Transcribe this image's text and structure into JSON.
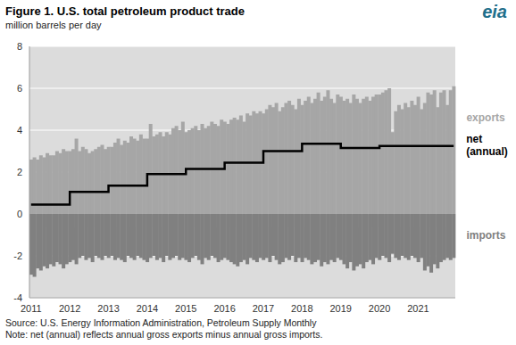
{
  "chart_data": {
    "type": "bar",
    "title": "Figure 1. U.S. total petroleum product trade",
    "subtitle": "million barrels per day",
    "source": "Source: U.S. Energy Information Administration, Petroleum Supply Monthly",
    "note": "Note: net (annual) reflects annual gross exports minus annual gross imports.",
    "logo": "eia",
    "categories": [
      "2011",
      null,
      null,
      null,
      null,
      null,
      null,
      null,
      null,
      null,
      null,
      null,
      "2012",
      null,
      null,
      null,
      null,
      null,
      null,
      null,
      null,
      null,
      null,
      null,
      "2013",
      null,
      null,
      null,
      null,
      null,
      null,
      null,
      null,
      null,
      null,
      null,
      "2014",
      null,
      null,
      null,
      null,
      null,
      null,
      null,
      null,
      null,
      null,
      null,
      "2015",
      null,
      null,
      null,
      null,
      null,
      null,
      null,
      null,
      null,
      null,
      null,
      "2016",
      null,
      null,
      null,
      null,
      null,
      null,
      null,
      null,
      null,
      null,
      null,
      "2017",
      null,
      null,
      null,
      null,
      null,
      null,
      null,
      null,
      null,
      null,
      null,
      "2018",
      null,
      null,
      null,
      null,
      null,
      null,
      null,
      null,
      null,
      null,
      null,
      "2019",
      null,
      null,
      null,
      null,
      null,
      null,
      null,
      null,
      null,
      null,
      null,
      "2020",
      null,
      null,
      null,
      null,
      null,
      null,
      null,
      null,
      null,
      null,
      null,
      "2021",
      null,
      null,
      null,
      null,
      null,
      null,
      null,
      null,
      null,
      null,
      null
    ],
    "series": [
      {
        "name": "exports",
        "type": "bar",
        "color": "#a6a6a6",
        "values": [
          2.6,
          2.7,
          2.6,
          2.8,
          2.7,
          2.9,
          2.8,
          2.8,
          3.0,
          2.9,
          3.1,
          3.0,
          3.0,
          3.1,
          3.6,
          3.0,
          3.2,
          3.1,
          2.9,
          3.0,
          3.1,
          3.2,
          3.3,
          3.1,
          3.2,
          3.2,
          3.4,
          3.6,
          3.3,
          3.5,
          3.4,
          3.7,
          3.6,
          3.5,
          3.8,
          3.6,
          3.6,
          4.3,
          3.7,
          3.8,
          3.9,
          3.7,
          3.9,
          3.8,
          4.1,
          4.2,
          4.0,
          4.4,
          3.9,
          4.0,
          4.1,
          4.2,
          4.0,
          4.3,
          4.1,
          4.2,
          4.4,
          4.3,
          4.2,
          4.5,
          4.4,
          4.3,
          4.5,
          4.6,
          4.5,
          4.7,
          4.4,
          4.8,
          4.7,
          4.9,
          4.8,
          4.9,
          4.8,
          5.0,
          5.2,
          5.1,
          5.3,
          4.9,
          5.1,
          5.3,
          5.4,
          5.2,
          5.0,
          5.5,
          5.2,
          5.4,
          5.6,
          5.3,
          5.5,
          5.8,
          5.4,
          5.6,
          5.9,
          5.5,
          5.3,
          5.7,
          5.6,
          5.4,
          5.5,
          5.3,
          5.7,
          5.5,
          5.3,
          5.5,
          5.6,
          5.4,
          5.6,
          5.7,
          5.7,
          5.8,
          5.9,
          6.0,
          3.9,
          4.9,
          5.2,
          5.0,
          5.3,
          5.1,
          5.4,
          5.2,
          5.6,
          5.0,
          5.3,
          5.8,
          5.7,
          5.9,
          5.1,
          5.8,
          5.9,
          5.2,
          5.9,
          6.1
        ]
      },
      {
        "name": "imports",
        "type": "bar",
        "color": "#808080",
        "values": [
          -2.9,
          -3.0,
          -2.6,
          -2.7,
          -2.5,
          -2.6,
          -2.4,
          -2.5,
          -2.3,
          -2.4,
          -2.6,
          -2.4,
          -2.3,
          -2.2,
          -2.4,
          -2.1,
          -2.0,
          -2.2,
          -2.1,
          -2.3,
          -2.0,
          -2.1,
          -2.2,
          -2.0,
          -2.1,
          -2.0,
          -2.2,
          -2.1,
          -2.2,
          -2.3,
          -2.0,
          -2.1,
          -2.2,
          -2.0,
          -2.1,
          -2.2,
          -2.3,
          -2.1,
          -2.0,
          -2.2,
          -2.1,
          -2.3,
          -2.0,
          -2.2,
          -2.1,
          -2.0,
          -2.2,
          -2.1,
          -2.2,
          -2.3,
          -2.1,
          -2.0,
          -2.2,
          -2.4,
          -2.1,
          -2.2,
          -2.0,
          -2.1,
          -2.3,
          -2.2,
          -2.1,
          -2.2,
          -2.3,
          -2.4,
          -2.5,
          -2.3,
          -2.2,
          -2.4,
          -2.1,
          -2.2,
          -2.3,
          -2.1,
          -2.2,
          -2.1,
          -2.3,
          -2.0,
          -2.2,
          -2.4,
          -2.3,
          -2.1,
          -2.2,
          -2.0,
          -2.3,
          -2.1,
          -2.3,
          -2.1,
          -2.2,
          -2.4,
          -2.3,
          -2.2,
          -2.5,
          -2.3,
          -2.4,
          -2.2,
          -2.3,
          -2.1,
          -2.2,
          -2.4,
          -2.6,
          -2.3,
          -2.7,
          -2.5,
          -2.4,
          -2.6,
          -2.3,
          -2.2,
          -2.4,
          -2.1,
          -2.2,
          -2.0,
          -2.1,
          -2.3,
          -1.9,
          -2.1,
          -2.2,
          -2.0,
          -2.1,
          -2.2,
          -2.0,
          -2.1,
          -2.3,
          -2.1,
          -2.7,
          -2.5,
          -2.8,
          -2.4,
          -2.6,
          -2.3,
          -2.2,
          -2.1,
          -2.2,
          -2.1
        ]
      },
      {
        "name": "net (annual)",
        "type": "line",
        "line_style": "step",
        "color": "#000000",
        "values": [
          0.45,
          0.45,
          0.45,
          0.45,
          0.45,
          0.45,
          0.45,
          0.45,
          0.45,
          0.45,
          0.45,
          0.45,
          1.05,
          1.05,
          1.05,
          1.05,
          1.05,
          1.05,
          1.05,
          1.05,
          1.05,
          1.05,
          1.05,
          1.05,
          1.35,
          1.35,
          1.35,
          1.35,
          1.35,
          1.35,
          1.35,
          1.35,
          1.35,
          1.35,
          1.35,
          1.35,
          1.9,
          1.9,
          1.9,
          1.9,
          1.9,
          1.9,
          1.9,
          1.9,
          1.9,
          1.9,
          1.9,
          1.9,
          2.15,
          2.15,
          2.15,
          2.15,
          2.15,
          2.15,
          2.15,
          2.15,
          2.15,
          2.15,
          2.15,
          2.15,
          2.45,
          2.45,
          2.45,
          2.45,
          2.45,
          2.45,
          2.45,
          2.45,
          2.45,
          2.45,
          2.45,
          2.45,
          3.0,
          3.0,
          3.0,
          3.0,
          3.0,
          3.0,
          3.0,
          3.0,
          3.0,
          3.0,
          3.0,
          3.0,
          3.35,
          3.35,
          3.35,
          3.35,
          3.35,
          3.35,
          3.35,
          3.35,
          3.35,
          3.35,
          3.35,
          3.35,
          3.15,
          3.15,
          3.15,
          3.15,
          3.15,
          3.15,
          3.15,
          3.15,
          3.15,
          3.15,
          3.15,
          3.15,
          3.25,
          3.25,
          3.25,
          3.25,
          3.25,
          3.25,
          3.25,
          3.25,
          3.25,
          3.25,
          3.25,
          3.25,
          3.25,
          3.25,
          3.25,
          3.25,
          3.25,
          3.25,
          3.25,
          3.25,
          3.25,
          3.25,
          3.25,
          3.25
        ]
      }
    ],
    "ylim": [
      -4,
      8
    ],
    "yticks": [
      -4,
      -2,
      0,
      2,
      4,
      6,
      8
    ],
    "grid": true,
    "stacked": true
  }
}
